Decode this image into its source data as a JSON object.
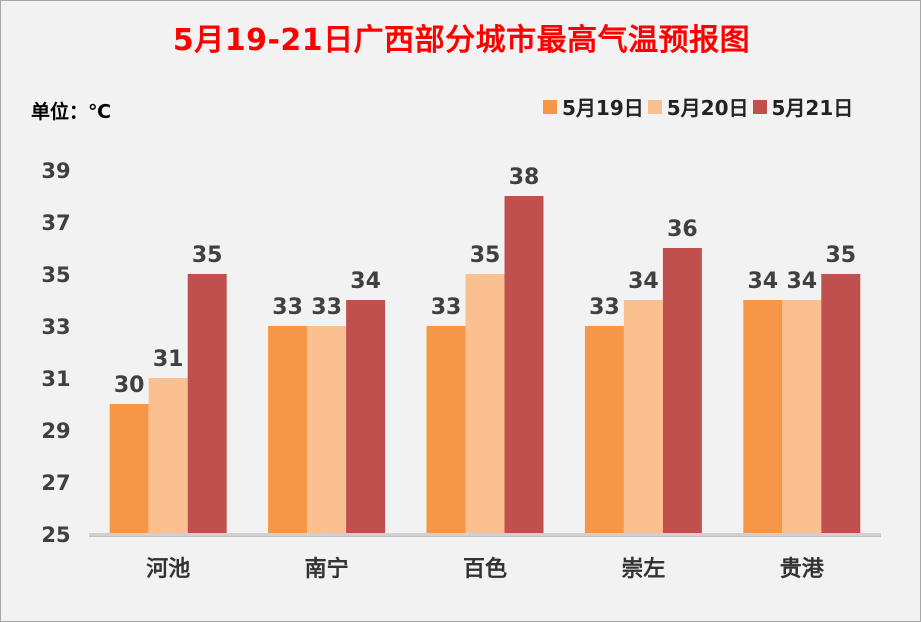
{
  "unit_label": "单位：℃",
  "chart_data": {
    "type": "bar",
    "title": "5月19-21日广西部分城市最高气温预报图",
    "categories": [
      "河池",
      "南宁",
      "百色",
      "崇左",
      "贵港"
    ],
    "series": [
      {
        "name": "5月19日",
        "values": [
          30,
          33,
          33,
          33,
          34
        ],
        "color": "#f79646"
      },
      {
        "name": "5月20日",
        "values": [
          31,
          33,
          35,
          34,
          34
        ],
        "color": "#fac090"
      },
      {
        "name": "5月21日",
        "values": [
          35,
          34,
          38,
          36,
          35
        ],
        "color": "#c0504d"
      }
    ],
    "yticks": [
      25,
      27,
      29,
      31,
      33,
      35,
      37,
      39
    ],
    "ylim": [
      25,
      39
    ],
    "grid": false,
    "legend": "top-right",
    "data_labels": true
  }
}
